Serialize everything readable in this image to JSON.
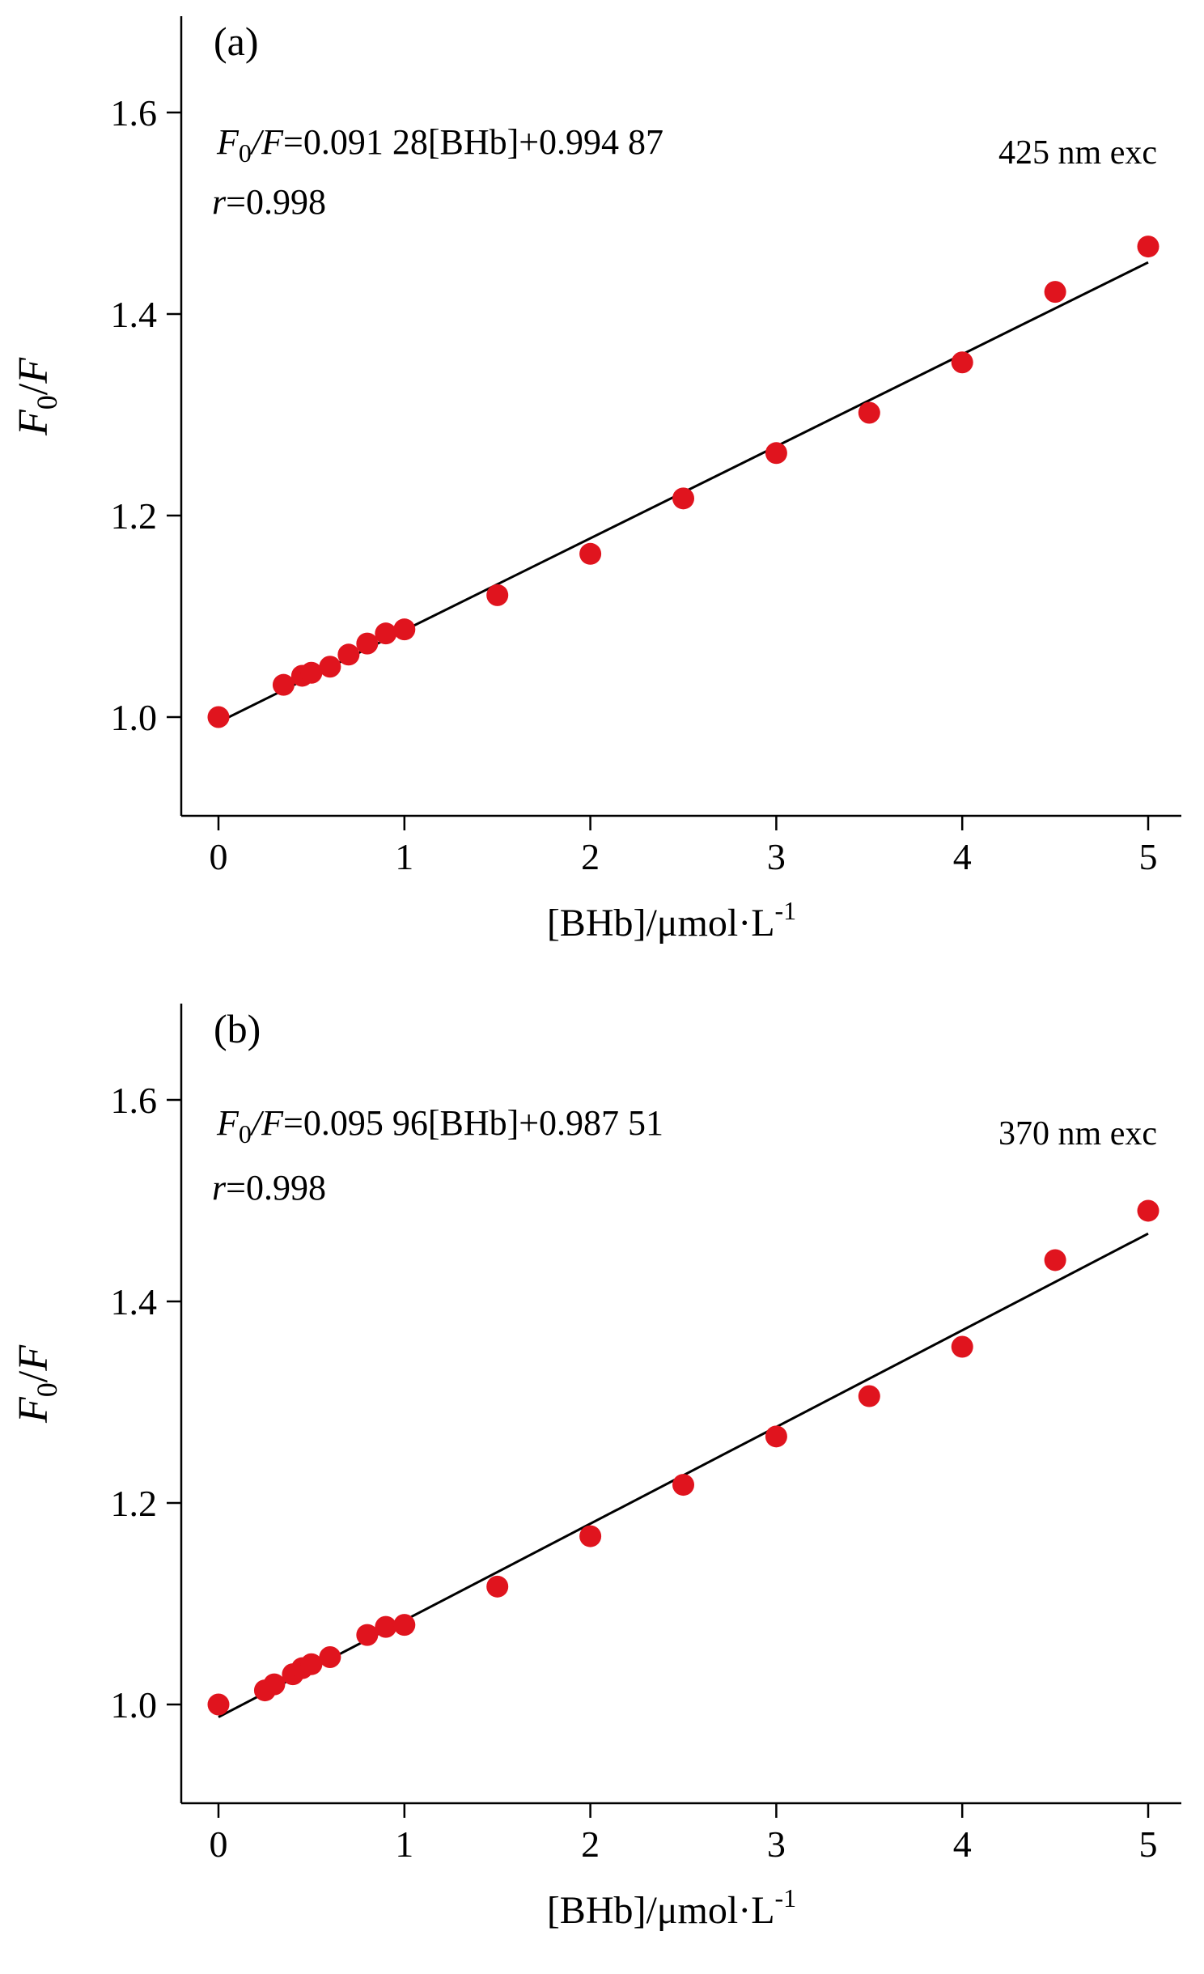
{
  "chart_data": [
    {
      "type": "scatter",
      "panel_label": "(a)",
      "xlabel": "[BHb]/μmol·L",
      "xlabel_sup": "-1",
      "ylabel": "F0/F",
      "xlim": [
        -0.2,
        5.2
      ],
      "ylim": [
        0.9,
        1.7
      ],
      "xticks": [
        0,
        1,
        2,
        3,
        4,
        5
      ],
      "yticks": [
        1.0,
        1.2,
        1.4,
        1.6
      ],
      "ytick_labels": [
        "1.0",
        "1.2",
        "1.4",
        "1.6"
      ],
      "equation": "F0/F=0.091 28[BHb]+0.994 87",
      "r_text": "r=0.998",
      "annotation": "425 nm exc",
      "fit": {
        "slope": 0.09128,
        "intercept": 0.99487,
        "x_range": [
          0,
          5
        ]
      },
      "marker_color": "#e0141e",
      "points": [
        {
          "x": 0,
          "y": 1.0
        },
        {
          "x": 0.35,
          "y": 1.032
        },
        {
          "x": 0.45,
          "y": 1.041
        },
        {
          "x": 0.5,
          "y": 1.044
        },
        {
          "x": 0.6,
          "y": 1.05
        },
        {
          "x": 0.7,
          "y": 1.062
        },
        {
          "x": 0.8,
          "y": 1.073
        },
        {
          "x": 0.9,
          "y": 1.083
        },
        {
          "x": 1.0,
          "y": 1.087
        },
        {
          "x": 1.5,
          "y": 1.121
        },
        {
          "x": 2.0,
          "y": 1.162
        },
        {
          "x": 2.5,
          "y": 1.217
        },
        {
          "x": 3.0,
          "y": 1.262
        },
        {
          "x": 3.5,
          "y": 1.302
        },
        {
          "x": 4.0,
          "y": 1.352
        },
        {
          "x": 4.5,
          "y": 1.422
        },
        {
          "x": 5.0,
          "y": 1.467
        }
      ]
    },
    {
      "type": "scatter",
      "panel_label": "(b)",
      "xlabel": "[BHb]/μmol·L",
      "xlabel_sup": "-1",
      "ylabel": "F0/F",
      "xlim": [
        -0.2,
        5.2
      ],
      "ylim": [
        0.9,
        1.7
      ],
      "xticks": [
        0,
        1,
        2,
        3,
        4,
        5
      ],
      "yticks": [
        1.0,
        1.2,
        1.4,
        1.6
      ],
      "ytick_labels": [
        "1.0",
        "1.2",
        "1.4",
        "1.6"
      ],
      "equation": "F0/F=0.095 96[BHb]+0.987 51",
      "r_text": "r=0.998",
      "annotation": "370 nm exc",
      "fit": {
        "slope": 0.09596,
        "intercept": 0.98751,
        "x_range": [
          0,
          5
        ]
      },
      "marker_color": "#e0141e",
      "points": [
        {
          "x": 0,
          "y": 1.0
        },
        {
          "x": 0.25,
          "y": 1.014
        },
        {
          "x": 0.3,
          "y": 1.02
        },
        {
          "x": 0.4,
          "y": 1.03
        },
        {
          "x": 0.45,
          "y": 1.036
        },
        {
          "x": 0.5,
          "y": 1.04
        },
        {
          "x": 0.6,
          "y": 1.047
        },
        {
          "x": 0.8,
          "y": 1.069
        },
        {
          "x": 0.9,
          "y": 1.077
        },
        {
          "x": 1.0,
          "y": 1.079
        },
        {
          "x": 1.5,
          "y": 1.117
        },
        {
          "x": 2.0,
          "y": 1.167
        },
        {
          "x": 2.5,
          "y": 1.218
        },
        {
          "x": 3.0,
          "y": 1.266
        },
        {
          "x": 3.5,
          "y": 1.306
        },
        {
          "x": 4.0,
          "y": 1.355
        },
        {
          "x": 4.5,
          "y": 1.441
        },
        {
          "x": 5.0,
          "y": 1.49
        }
      ]
    }
  ]
}
